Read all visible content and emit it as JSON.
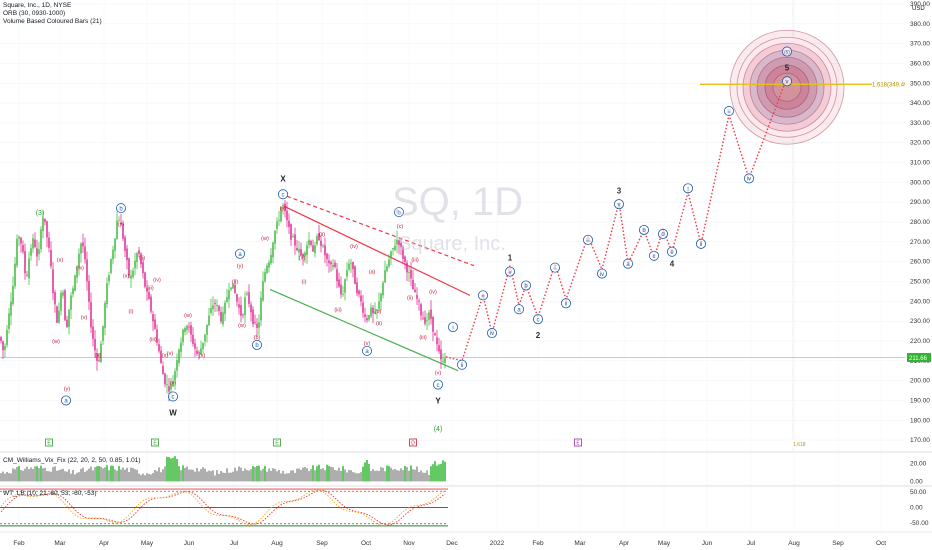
{
  "header": {
    "line1": "Square, Inc., 1D, NYSE",
    "line2": "ORB (30, 0930-1000)",
    "line3": "Volume Based Coloured Bars (21)"
  },
  "watermark": {
    "symbol": "SQ, 1D",
    "name": "Square, Inc."
  },
  "currency": "USD",
  "colors": {
    "up": "#2fb52f",
    "down": "#e0188a",
    "red_line": "#f23645",
    "green_line": "#4caf50",
    "wave_blue": "#1e5aa8",
    "wave_red": "#c0203a",
    "wave_green": "#2e9e2e",
    "fib": "#e3c21a"
  },
  "chart_data": [
    {
      "type": "candlestick",
      "title": "Square, Inc., 1D, NYSE",
      "x_ticks": [
        "Feb",
        "Mar",
        "Apr",
        "May",
        "Jun",
        "Jul",
        "Aug",
        "Sep",
        "Oct",
        "Nov",
        "Dec",
        "2022",
        "Feb",
        "Mar",
        "Apr",
        "May",
        "Jun",
        "Jul",
        "Aug",
        "Sep",
        "Oct"
      ],
      "y_ticks": [
        170,
        180,
        190,
        200,
        210,
        220,
        230,
        240,
        250,
        260,
        270,
        280,
        290,
        300,
        310,
        320,
        330,
        340,
        350,
        360,
        370,
        380,
        390
      ],
      "ylim": [
        165,
        392
      ],
      "last_price_label": "211.66",
      "fib_label": "1.618(349.49)",
      "bottom_right_label": "1.618",
      "price_path": [
        [
          0,
          222
        ],
        [
          4,
          213
        ],
        [
          8,
          232
        ],
        [
          13,
          248
        ],
        [
          18,
          275
        ],
        [
          22,
          268
        ],
        [
          26,
          250
        ],
        [
          30,
          266
        ],
        [
          34,
          272
        ],
        [
          38,
          258
        ],
        [
          42,
          285
        ],
        [
          46,
          276
        ],
        [
          50,
          262
        ],
        [
          54,
          240
        ],
        [
          58,
          228
        ],
        [
          62,
          252
        ],
        [
          66,
          225
        ],
        [
          70,
          240
        ],
        [
          74,
          248
        ],
        [
          78,
          262
        ],
        [
          82,
          272
        ],
        [
          86,
          255
        ],
        [
          90,
          232
        ],
        [
          94,
          218
        ],
        [
          98,
          208
        ],
        [
          102,
          222
        ],
        [
          106,
          244
        ],
        [
          110,
          258
        ],
        [
          114,
          270
        ],
        [
          118,
          284
        ],
        [
          122,
          276
        ],
        [
          126,
          262
        ],
        [
          130,
          250
        ],
        [
          134,
          258
        ],
        [
          138,
          266
        ],
        [
          142,
          256
        ],
        [
          146,
          245
        ],
        [
          150,
          238
        ],
        [
          154,
          228
        ],
        [
          158,
          218
        ],
        [
          162,
          205
        ],
        [
          166,
          198
        ],
        [
          170,
          196
        ],
        [
          174,
          202
        ],
        [
          178,
          215
        ],
        [
          182,
          222
        ],
        [
          186,
          230
        ],
        [
          190,
          224
        ],
        [
          194,
          218
        ],
        [
          198,
          212
        ],
        [
          202,
          218
        ],
        [
          206,
          226
        ],
        [
          210,
          234
        ],
        [
          214,
          240
        ],
        [
          218,
          236
        ],
        [
          222,
          230
        ],
        [
          226,
          240
        ],
        [
          230,
          250
        ],
        [
          234,
          246
        ],
        [
          238,
          238
        ],
        [
          242,
          232
        ],
        [
          246,
          244
        ],
        [
          250,
          238
        ],
        [
          254,
          228
        ],
        [
          258,
          225
        ],
        [
          262,
          246
        ],
        [
          266,
          258
        ],
        [
          270,
          262
        ],
        [
          274,
          274
        ],
        [
          278,
          280
        ],
        [
          282,
          290
        ],
        [
          286,
          282
        ],
        [
          290,
          274
        ],
        [
          294,
          270
        ],
        [
          298,
          266
        ],
        [
          302,
          262
        ],
        [
          306,
          268
        ],
        [
          310,
          272
        ],
        [
          314,
          264
        ],
        [
          318,
          274
        ],
        [
          322,
          268
        ],
        [
          326,
          262
        ],
        [
          330,
          256
        ],
        [
          334,
          260
        ],
        [
          338,
          248
        ],
        [
          342,
          242
        ],
        [
          346,
          254
        ],
        [
          350,
          262
        ],
        [
          354,
          252
        ],
        [
          358,
          244
        ],
        [
          362,
          238
        ],
        [
          366,
          230
        ],
        [
          370,
          236
        ],
        [
          374,
          232
        ],
        [
          378,
          236
        ],
        [
          382,
          248
        ],
        [
          386,
          256
        ],
        [
          390,
          262
        ],
        [
          394,
          268
        ],
        [
          398,
          272
        ],
        [
          402,
          264
        ],
        [
          406,
          258
        ],
        [
          410,
          252
        ],
        [
          414,
          244
        ],
        [
          418,
          240
        ],
        [
          422,
          232
        ],
        [
          426,
          230
        ],
        [
          430,
          234
        ],
        [
          434,
          224
        ],
        [
          438,
          215
        ],
        [
          442,
          208
        ],
        [
          446,
          212
        ]
      ],
      "waves": [
        {
          "text": "(3)",
          "x": 40,
          "y": 285,
          "style": "green"
        },
        {
          "text": "(x)",
          "x": 60,
          "y": 261,
          "style": "red"
        },
        {
          "text": "(w)",
          "x": 56,
          "y": 220,
          "style": "red"
        },
        {
          "text": "(y)",
          "x": 67,
          "y": 196,
          "style": "red"
        },
        {
          "text": "a",
          "x": 66,
          "y": 190,
          "style": "circle"
        },
        {
          "text": "(w)",
          "x": 80,
          "y": 257,
          "style": "red"
        },
        {
          "text": "(v)",
          "x": 84,
          "y": 232,
          "style": "red"
        },
        {
          "text": "(x)",
          "x": 98,
          "y": 213,
          "style": "red"
        },
        {
          "text": "b",
          "x": 121,
          "y": 287,
          "style": "circle"
        },
        {
          "text": "(y)",
          "x": 121,
          "y": 279,
          "style": "red"
        },
        {
          "text": "(x)",
          "x": 126,
          "y": 253,
          "style": "red"
        },
        {
          "text": "(i)",
          "x": 131,
          "y": 235,
          "style": "red"
        },
        {
          "text": "(ii)",
          "x": 142,
          "y": 262,
          "style": "red"
        },
        {
          "text": "(iii)",
          "x": 150,
          "y": 247,
          "style": "red"
        },
        {
          "text": "(iv)",
          "x": 157,
          "y": 251,
          "style": "red"
        },
        {
          "text": "(iii)",
          "x": 153,
          "y": 221,
          "style": "red"
        },
        {
          "text": "(v)",
          "x": 170,
          "y": 214,
          "style": "red"
        },
        {
          "text": "(x)",
          "x": 165,
          "y": 213,
          "style": "red"
        },
        {
          "text": "(v)",
          "x": 173,
          "y": 199,
          "style": "red"
        },
        {
          "text": "c",
          "x": 173,
          "y": 192,
          "style": "circle"
        },
        {
          "text": "W",
          "x": 173,
          "y": 184,
          "style": "black"
        },
        {
          "text": "(w)",
          "x": 188,
          "y": 233,
          "style": "red"
        },
        {
          "text": "(x)",
          "x": 202,
          "y": 213,
          "style": "red"
        },
        {
          "text": "a",
          "x": 240,
          "y": 264,
          "style": "circle"
        },
        {
          "text": "(y)",
          "x": 240,
          "y": 258,
          "style": "red"
        },
        {
          "text": "(x)",
          "x": 235,
          "y": 250,
          "style": "red"
        },
        {
          "text": "(w)",
          "x": 242,
          "y": 228,
          "style": "red"
        },
        {
          "text": "(b)",
          "x": 257,
          "y": 222,
          "style": "red"
        },
        {
          "text": "b",
          "x": 257,
          "y": 218,
          "style": "circle"
        },
        {
          "text": "(w)",
          "x": 265,
          "y": 272,
          "style": "red"
        },
        {
          "text": "X",
          "x": 283,
          "y": 302,
          "style": "black"
        },
        {
          "text": "c",
          "x": 283,
          "y": 294,
          "style": "circle"
        },
        {
          "text": "(y)",
          "x": 283,
          "y": 287,
          "style": "red"
        },
        {
          "text": "(x)",
          "x": 302,
          "y": 262,
          "style": "red"
        },
        {
          "text": "(i)",
          "x": 304,
          "y": 250,
          "style": "red"
        },
        {
          "text": "(ii)",
          "x": 322,
          "y": 274,
          "style": "red"
        },
        {
          "text": "(iv)",
          "x": 354,
          "y": 268,
          "style": "red"
        },
        {
          "text": "(iii)",
          "x": 338,
          "y": 236,
          "style": "red"
        },
        {
          "text": "(v)",
          "x": 367,
          "y": 219,
          "style": "red"
        },
        {
          "text": "a",
          "x": 367,
          "y": 215,
          "style": "circle"
        },
        {
          "text": "b",
          "x": 399,
          "y": 285,
          "style": "circle"
        },
        {
          "text": "(c)",
          "x": 400,
          "y": 278,
          "style": "red"
        },
        {
          "text": "(a)",
          "x": 372,
          "y": 255,
          "style": "red"
        },
        {
          "text": "(b)",
          "x": 378,
          "y": 235,
          "style": "red"
        },
        {
          "text": "(ii)",
          "x": 379,
          "y": 229,
          "style": "red"
        },
        {
          "text": "(iii)",
          "x": 415,
          "y": 261,
          "style": "red"
        },
        {
          "text": "(ii)",
          "x": 410,
          "y": 242,
          "style": "red"
        },
        {
          "text": "(iv)",
          "x": 433,
          "y": 245,
          "style": "red"
        },
        {
          "text": "(iii)",
          "x": 423,
          "y": 222,
          "style": "red"
        },
        {
          "text": "(v)",
          "x": 438,
          "y": 204,
          "style": "red"
        },
        {
          "text": "c",
          "x": 438,
          "y": 198,
          "style": "circle"
        },
        {
          "text": "Y",
          "x": 438,
          "y": 190,
          "style": "black"
        },
        {
          "text": "(4)",
          "x": 438,
          "y": 176,
          "style": "green"
        },
        {
          "text": "i",
          "x": 453,
          "y": 227,
          "style": "circle"
        },
        {
          "text": "ii",
          "x": 462,
          "y": 208,
          "style": "circle"
        },
        {
          "text": "iii",
          "x": 483,
          "y": 243,
          "style": "circle"
        },
        {
          "text": "iv",
          "x": 492,
          "y": 224,
          "style": "circle"
        },
        {
          "text": "1",
          "x": 510,
          "y": 262,
          "style": "gold"
        },
        {
          "text": "v",
          "x": 510,
          "y": 255,
          "style": "circle"
        },
        {
          "text": "a",
          "x": 519,
          "y": 236,
          "style": "circle"
        },
        {
          "text": "b",
          "x": 526,
          "y": 248,
          "style": "circle"
        },
        {
          "text": "c",
          "x": 538,
          "y": 231,
          "style": "circle"
        },
        {
          "text": "2",
          "x": 538,
          "y": 223,
          "style": "gold"
        },
        {
          "text": "i",
          "x": 555,
          "y": 257,
          "style": "circle"
        },
        {
          "text": "ii",
          "x": 566,
          "y": 239,
          "style": "circle"
        },
        {
          "text": "iii",
          "x": 588,
          "y": 271,
          "style": "circle"
        },
        {
          "text": "iv",
          "x": 602,
          "y": 254,
          "style": "circle"
        },
        {
          "text": "3",
          "x": 619,
          "y": 296,
          "style": "gold"
        },
        {
          "text": "v",
          "x": 619,
          "y": 289,
          "style": "circle"
        },
        {
          "text": "a",
          "x": 628,
          "y": 259,
          "style": "circle"
        },
        {
          "text": "b",
          "x": 644,
          "y": 276,
          "style": "circle"
        },
        {
          "text": "c",
          "x": 654,
          "y": 263,
          "style": "circle"
        },
        {
          "text": "d",
          "x": 663,
          "y": 274,
          "style": "circle"
        },
        {
          "text": "e",
          "x": 672,
          "y": 265,
          "style": "circle"
        },
        {
          "text": "4",
          "x": 672,
          "y": 259,
          "style": "gold"
        },
        {
          "text": "i",
          "x": 688,
          "y": 297,
          "style": "circle"
        },
        {
          "text": "ii",
          "x": 701,
          "y": 269,
          "style": "circle"
        },
        {
          "text": "iii",
          "x": 729,
          "y": 336,
          "style": "circle"
        },
        {
          "text": "iv",
          "x": 749,
          "y": 302,
          "style": "circle"
        },
        {
          "text": "(5)",
          "x": 787,
          "y": 366,
          "style": "circle_plain"
        },
        {
          "text": "5",
          "x": 787,
          "y": 358,
          "style": "gold"
        },
        {
          "text": "v",
          "x": 787,
          "y": 351,
          "style": "circle"
        }
      ],
      "projection": [
        [
          446,
          212
        ],
        [
          462,
          210
        ],
        [
          483,
          243
        ],
        [
          492,
          224
        ],
        [
          510,
          258
        ],
        [
          519,
          238
        ],
        [
          526,
          248
        ],
        [
          538,
          232
        ],
        [
          555,
          259
        ],
        [
          566,
          241
        ],
        [
          588,
          273
        ],
        [
          602,
          256
        ],
        [
          619,
          290
        ],
        [
          628,
          259
        ],
        [
          644,
          276
        ],
        [
          654,
          262
        ],
        [
          663,
          276
        ],
        [
          672,
          265
        ],
        [
          688,
          295
        ],
        [
          701,
          269
        ],
        [
          729,
          334
        ],
        [
          749,
          302
        ],
        [
          787,
          353
        ]
      ],
      "fib_level": 349.49,
      "target_center": [
        787,
        351
      ]
    },
    {
      "type": "bar",
      "title": "CM_Williams_Vix_Fix (22, 20, 2, 50, 0.85, 1.01)",
      "y_ticks": [
        20.0,
        0.0
      ],
      "ylim": [
        -4,
        33
      ]
    },
    {
      "type": "line",
      "title": "WT_LB (10, 21, 60, 53, -60, -53)",
      "y_ticks": [
        50.0,
        0.0,
        -50.0
      ],
      "ylim": [
        -80,
        70
      ],
      "levels": [
        60,
        53,
        -53,
        -60
      ]
    }
  ],
  "time_markers": [
    {
      "x": 49,
      "label": "E",
      "color": "#2e9e2e"
    },
    {
      "x": 155,
      "label": "E",
      "color": "#2e9e2e"
    },
    {
      "x": 277,
      "label": "E",
      "color": "#2e9e2e"
    },
    {
      "x": 413,
      "label": "D",
      "color": "#c0203a"
    },
    {
      "x": 578,
      "label": "E",
      "color": "#a22aa6"
    }
  ]
}
